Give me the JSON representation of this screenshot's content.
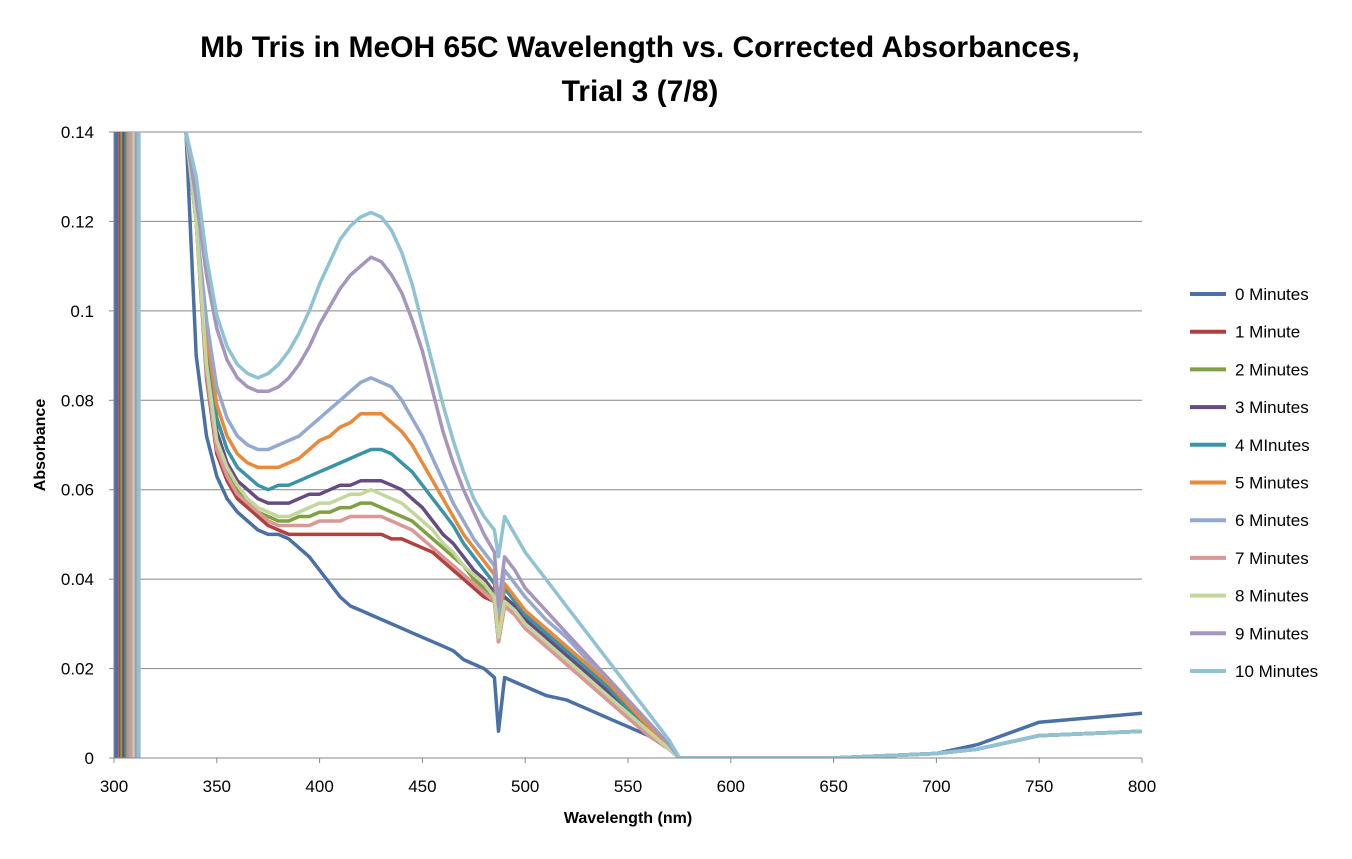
{
  "chart_data": {
    "type": "line",
    "title_lines": [
      "Mb Tris in MeOH 65C Wavelength vs. Corrected Absorbances,",
      "Trial 3 (7/8)"
    ],
    "xlabel": "Wavelength (nm)",
    "ylabel": "Absorbance",
    "xlim": [
      300,
      800
    ],
    "ylim": [
      0,
      0.14
    ],
    "x_ticks": [
      300,
      350,
      400,
      450,
      500,
      550,
      600,
      650,
      700,
      750,
      800
    ],
    "x_tick_labels": [
      "300",
      "350",
      "400",
      "450",
      "500",
      "550",
      "600",
      "650",
      "700",
      "750",
      "800"
    ],
    "y_ticks": [
      0,
      0.02,
      0.04,
      0.06,
      0.08,
      0.1,
      0.12,
      0.14
    ],
    "y_tick_labels": [
      "0",
      "0.02",
      "0.04",
      "0.06",
      "0.08",
      "0.1",
      "0.12",
      "0.14"
    ],
    "grid": "horizontal",
    "legend_position": "right",
    "x": [
      335,
      340,
      345,
      350,
      355,
      360,
      365,
      370,
      375,
      380,
      385,
      390,
      395,
      400,
      405,
      410,
      415,
      420,
      425,
      430,
      435,
      440,
      445,
      450,
      455,
      460,
      465,
      470,
      475,
      480,
      485,
      487,
      490,
      495,
      500,
      510,
      520,
      530,
      540,
      550,
      560,
      570,
      575,
      580,
      600,
      650,
      700,
      720,
      750,
      800
    ],
    "series": [
      {
        "name": "0 Minutes",
        "color": "#4a70a6",
        "values": [
          0.14,
          0.09,
          0.072,
          0.063,
          0.058,
          0.055,
          0.053,
          0.051,
          0.05,
          0.05,
          0.049,
          0.047,
          0.045,
          0.042,
          0.039,
          0.036,
          0.034,
          0.033,
          0.032,
          0.031,
          0.03,
          0.029,
          0.028,
          0.027,
          0.026,
          0.025,
          0.024,
          0.022,
          0.021,
          0.02,
          0.018,
          0.006,
          0.018,
          0.017,
          0.016,
          0.014,
          0.013,
          0.011,
          0.009,
          0.007,
          0.005,
          0.002,
          0.0,
          0.0,
          0.0,
          0.0,
          0.001,
          0.003,
          0.008,
          0.01
        ]
      },
      {
        "name": "1 Minute",
        "color": "#b0413e",
        "values": [
          0.14,
          0.12,
          0.085,
          0.068,
          0.062,
          0.058,
          0.056,
          0.054,
          0.052,
          0.051,
          0.05,
          0.05,
          0.05,
          0.05,
          0.05,
          0.05,
          0.05,
          0.05,
          0.05,
          0.05,
          0.049,
          0.049,
          0.048,
          0.047,
          0.046,
          0.044,
          0.042,
          0.04,
          0.038,
          0.036,
          0.035,
          0.026,
          0.034,
          0.032,
          0.029,
          0.025,
          0.021,
          0.017,
          0.013,
          0.009,
          0.005,
          0.002,
          0.0,
          0.0,
          0.0,
          0.0,
          0.001,
          0.002,
          0.005,
          0.006
        ]
      },
      {
        "name": "2 Minutes",
        "color": "#7fa043",
        "values": [
          0.14,
          0.12,
          0.087,
          0.07,
          0.064,
          0.06,
          0.057,
          0.055,
          0.054,
          0.053,
          0.053,
          0.054,
          0.054,
          0.055,
          0.055,
          0.056,
          0.056,
          0.057,
          0.057,
          0.056,
          0.055,
          0.054,
          0.053,
          0.051,
          0.049,
          0.047,
          0.045,
          0.043,
          0.04,
          0.038,
          0.036,
          0.027,
          0.035,
          0.033,
          0.03,
          0.026,
          0.022,
          0.018,
          0.014,
          0.01,
          0.006,
          0.002,
          0.0,
          0.0,
          0.0,
          0.0,
          0.001,
          0.002,
          0.005,
          0.006
        ]
      },
      {
        "name": "3 Minutes",
        "color": "#664c80",
        "values": [
          0.14,
          0.12,
          0.09,
          0.073,
          0.066,
          0.062,
          0.06,
          0.058,
          0.057,
          0.057,
          0.057,
          0.058,
          0.059,
          0.059,
          0.06,
          0.061,
          0.061,
          0.062,
          0.062,
          0.062,
          0.061,
          0.06,
          0.058,
          0.056,
          0.053,
          0.05,
          0.048,
          0.045,
          0.042,
          0.04,
          0.037,
          0.028,
          0.036,
          0.034,
          0.031,
          0.027,
          0.023,
          0.019,
          0.015,
          0.011,
          0.006,
          0.002,
          0.0,
          0.0,
          0.0,
          0.0,
          0.001,
          0.002,
          0.005,
          0.006
        ]
      },
      {
        "name": "4 MInutes",
        "color": "#3b93a8",
        "values": [
          0.14,
          0.12,
          0.092,
          0.076,
          0.069,
          0.065,
          0.063,
          0.061,
          0.06,
          0.061,
          0.061,
          0.062,
          0.063,
          0.064,
          0.065,
          0.066,
          0.067,
          0.068,
          0.069,
          0.069,
          0.068,
          0.066,
          0.064,
          0.061,
          0.058,
          0.055,
          0.052,
          0.048,
          0.045,
          0.042,
          0.039,
          0.029,
          0.038,
          0.035,
          0.032,
          0.028,
          0.024,
          0.02,
          0.016,
          0.011,
          0.007,
          0.002,
          0.0,
          0.0,
          0.0,
          0.0,
          0.001,
          0.002,
          0.005,
          0.006
        ]
      },
      {
        "name": "5 Minutes",
        "color": "#e9893b",
        "values": [
          0.14,
          0.12,
          0.095,
          0.079,
          0.072,
          0.068,
          0.066,
          0.065,
          0.065,
          0.065,
          0.066,
          0.067,
          0.069,
          0.071,
          0.072,
          0.074,
          0.075,
          0.077,
          0.077,
          0.077,
          0.075,
          0.073,
          0.07,
          0.066,
          0.062,
          0.058,
          0.054,
          0.05,
          0.047,
          0.044,
          0.041,
          0.03,
          0.039,
          0.036,
          0.033,
          0.029,
          0.025,
          0.021,
          0.017,
          0.012,
          0.007,
          0.002,
          0.0,
          0.0,
          0.0,
          0.0,
          0.001,
          0.002,
          0.005,
          0.006
        ]
      },
      {
        "name": "6 Minutes",
        "color": "#93a9d1",
        "values": [
          0.14,
          0.12,
          0.098,
          0.083,
          0.076,
          0.072,
          0.07,
          0.069,
          0.069,
          0.07,
          0.071,
          0.072,
          0.074,
          0.076,
          0.078,
          0.08,
          0.082,
          0.084,
          0.085,
          0.084,
          0.083,
          0.08,
          0.076,
          0.072,
          0.067,
          0.062,
          0.057,
          0.053,
          0.049,
          0.046,
          0.043,
          0.032,
          0.042,
          0.039,
          0.036,
          0.031,
          0.027,
          0.022,
          0.018,
          0.013,
          0.008,
          0.003,
          0.0,
          0.0,
          0.0,
          0.0,
          0.001,
          0.002,
          0.005,
          0.006
        ]
      },
      {
        "name": "7 Minutes",
        "color": "#d99795",
        "values": [
          0.14,
          0.12,
          0.086,
          0.069,
          0.063,
          0.059,
          0.057,
          0.055,
          0.053,
          0.052,
          0.052,
          0.052,
          0.052,
          0.053,
          0.053,
          0.053,
          0.054,
          0.054,
          0.054,
          0.054,
          0.053,
          0.052,
          0.051,
          0.049,
          0.047,
          0.045,
          0.043,
          0.041,
          0.039,
          0.037,
          0.035,
          0.026,
          0.034,
          0.032,
          0.029,
          0.025,
          0.021,
          0.017,
          0.013,
          0.009,
          0.005,
          0.002,
          0.0,
          0.0,
          0.0,
          0.0,
          0.001,
          0.002,
          0.005,
          0.006
        ]
      },
      {
        "name": "8 Minutes",
        "color": "#c3d69b",
        "values": [
          0.14,
          0.12,
          0.088,
          0.071,
          0.065,
          0.061,
          0.058,
          0.056,
          0.055,
          0.054,
          0.054,
          0.055,
          0.056,
          0.057,
          0.057,
          0.058,
          0.059,
          0.059,
          0.06,
          0.059,
          0.058,
          0.057,
          0.055,
          0.053,
          0.051,
          0.048,
          0.046,
          0.043,
          0.041,
          0.039,
          0.036,
          0.027,
          0.035,
          0.033,
          0.03,
          0.026,
          0.022,
          0.018,
          0.014,
          0.01,
          0.006,
          0.002,
          0.0,
          0.0,
          0.0,
          0.0,
          0.001,
          0.002,
          0.005,
          0.006
        ]
      },
      {
        "name": "9 Minutes",
        "color": "#a696bd",
        "values": [
          0.14,
          0.125,
          0.108,
          0.096,
          0.089,
          0.085,
          0.083,
          0.082,
          0.082,
          0.083,
          0.085,
          0.088,
          0.092,
          0.097,
          0.101,
          0.105,
          0.108,
          0.11,
          0.112,
          0.111,
          0.108,
          0.104,
          0.098,
          0.091,
          0.082,
          0.073,
          0.066,
          0.06,
          0.055,
          0.05,
          0.046,
          0.034,
          0.045,
          0.042,
          0.038,
          0.033,
          0.028,
          0.023,
          0.018,
          0.013,
          0.008,
          0.003,
          0.0,
          0.0,
          0.0,
          0.0,
          0.001,
          0.002,
          0.005,
          0.006
        ]
      },
      {
        "name": "10 Minutes",
        "color": "#8fc3d3",
        "values": [
          0.14,
          0.13,
          0.112,
          0.099,
          0.092,
          0.088,
          0.086,
          0.085,
          0.086,
          0.088,
          0.091,
          0.095,
          0.1,
          0.106,
          0.111,
          0.116,
          0.119,
          0.121,
          0.122,
          0.121,
          0.118,
          0.113,
          0.106,
          0.097,
          0.088,
          0.079,
          0.071,
          0.064,
          0.058,
          0.054,
          0.051,
          0.045,
          0.054,
          0.05,
          0.046,
          0.04,
          0.034,
          0.028,
          0.022,
          0.016,
          0.01,
          0.004,
          0.0,
          0.0,
          0.0,
          0.0,
          0.001,
          0.002,
          0.005,
          0.006
        ]
      }
    ],
    "vertical_spikes": [
      {
        "x": 301,
        "color": "#4a70a6"
      },
      {
        "x": 303,
        "color": "#b0413e"
      },
      {
        "x": 304,
        "color": "#7fa043"
      },
      {
        "x": 305,
        "color": "#664c80"
      },
      {
        "x": 306,
        "color": "#3b93a8"
      },
      {
        "x": 307,
        "color": "#e9893b"
      },
      {
        "x": 308,
        "color": "#93a9d1"
      },
      {
        "x": 309,
        "color": "#d99795"
      },
      {
        "x": 310,
        "color": "#c3d69b"
      },
      {
        "x": 311,
        "color": "#a696bd"
      },
      {
        "x": 312,
        "color": "#8fc3d3"
      }
    ]
  }
}
